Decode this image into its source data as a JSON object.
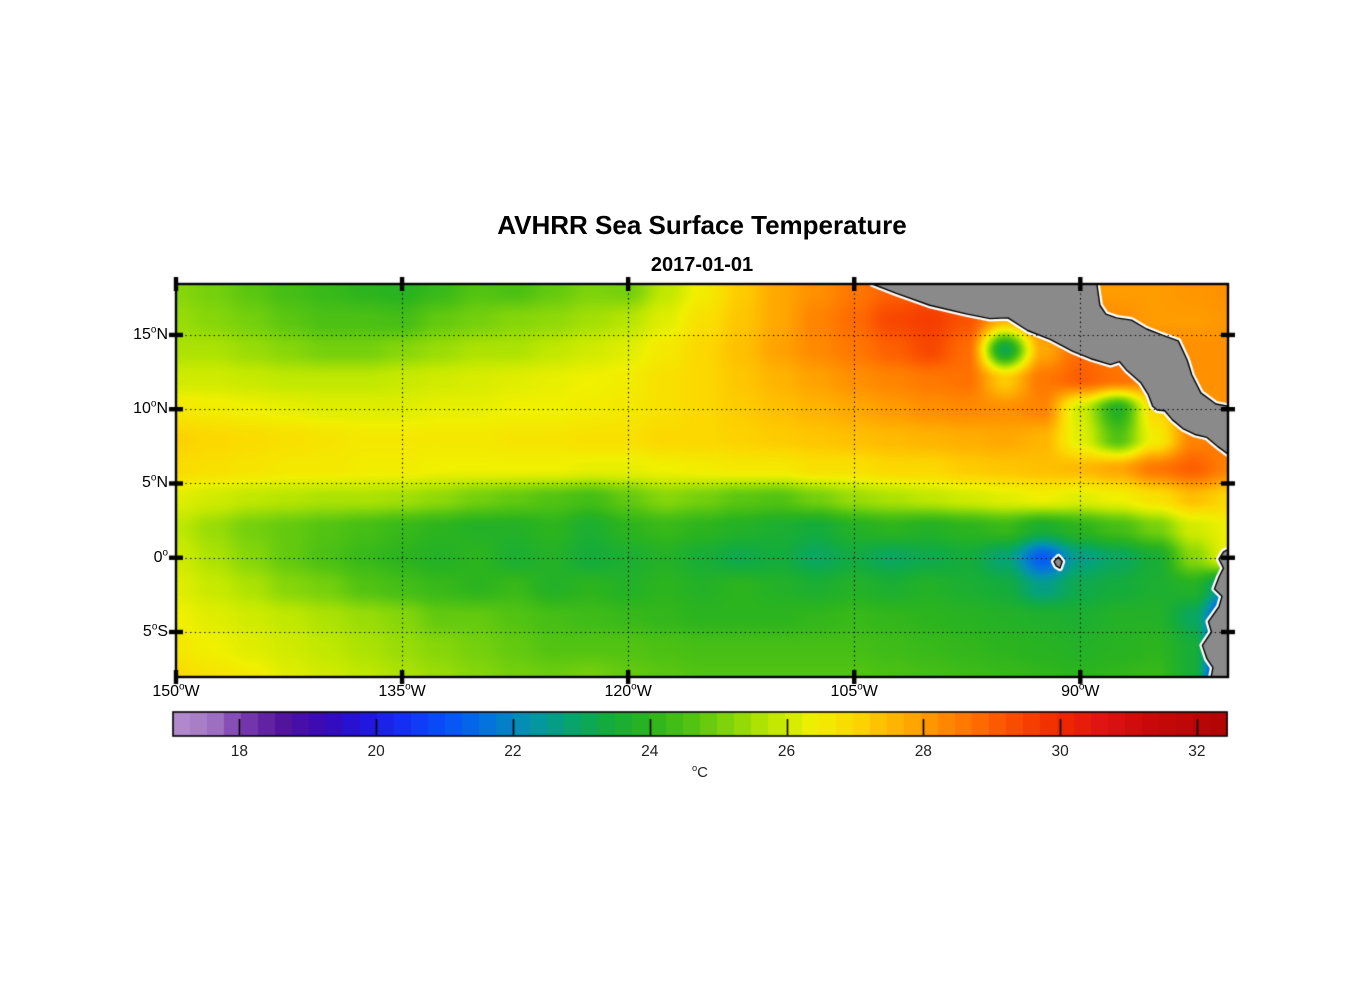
{
  "figure": {
    "title": "AVHRR Sea Surface Temperature",
    "subtitle": "2017-01-01",
    "background": "#ffffff"
  },
  "map": {
    "x_ticks": [
      {
        "lon": -150,
        "label": "150°W"
      },
      {
        "lon": -135,
        "label": "135°W"
      },
      {
        "lon": -120,
        "label": "120°W"
      },
      {
        "lon": -105,
        "label": "105°W"
      },
      {
        "lon": -90,
        "label": "90°W"
      }
    ],
    "y_ticks": [
      {
        "lat": 15,
        "label": "15°N"
      },
      {
        "lat": 10,
        "label": "10°N"
      },
      {
        "lat": 5,
        "label": "5°N"
      },
      {
        "lat": 0,
        "label": "0°"
      },
      {
        "lat": -5,
        "label": "5°S"
      }
    ],
    "extent": {
      "lon_min": -150,
      "lon_max": -80.2,
      "lat_min": -8.03,
      "lat_max": 18.43
    },
    "land_color": "#8a8a8a",
    "coast_color": "#000000",
    "coast_halo_color": "#ffffff",
    "gridline_color": "#000000",
    "frame_color": "#000000"
  },
  "colorbar": {
    "min": 17.03,
    "max": 32.44,
    "steps": 62,
    "ticks": [
      {
        "value": 18,
        "label": "18"
      },
      {
        "value": 20,
        "label": "20"
      },
      {
        "value": 22,
        "label": "22"
      },
      {
        "value": 24,
        "label": "24"
      },
      {
        "value": 26,
        "label": "26"
      },
      {
        "value": 28,
        "label": "28"
      },
      {
        "value": 30,
        "label": "30"
      },
      {
        "value": 32,
        "label": "32"
      }
    ],
    "unit": "°C"
  },
  "chart_data": {
    "type": "heatmap",
    "title": "AVHRR Sea Surface Temperature",
    "date": "2017-01-01",
    "units": "°C",
    "value_range": [
      17,
      32.5
    ],
    "lons": [
      -150,
      -147.5,
      -145,
      -142.5,
      -140,
      -137.5,
      -135,
      -132.5,
      -130,
      -127.5,
      -125,
      -122.5,
      -120,
      -117.5,
      -115,
      -112.5,
      -110,
      -107.5,
      -105,
      -102.5,
      -100,
      -97.5,
      -95,
      -92.5,
      -90,
      -87.5,
      -85,
      -82.5,
      -80
    ],
    "lats": [
      18,
      16,
      14,
      12,
      10,
      8,
      6,
      4,
      2,
      0,
      -2,
      -4,
      -6,
      -8
    ],
    "sst": [
      [
        25.2,
        25.0,
        24.7,
        24.4,
        24.2,
        24.0,
        23.9,
        24.2,
        24.6,
        24.5,
        24.8,
        25.1,
        25.0,
        25.8,
        26.5,
        27.2,
        27.8,
        28.2,
        28.6,
        29.0,
        29.2,
        29.0,
        28.6,
        28.3,
        28.0,
        28.0,
        28.0,
        28.1,
        28.2
      ],
      [
        25.4,
        25.2,
        25.0,
        24.7,
        24.5,
        24.5,
        24.4,
        24.8,
        25.0,
        25.2,
        25.3,
        25.5,
        25.7,
        26.2,
        26.8,
        27.3,
        27.8,
        28.4,
        28.8,
        29.4,
        29.6,
        29.2,
        27.5,
        28.4,
        28.6,
        28.2,
        28.0,
        28.0,
        28.1
      ],
      [
        25.6,
        25.6,
        25.4,
        25.2,
        25.0,
        25.0,
        25.2,
        25.4,
        25.6,
        25.6,
        25.8,
        26.0,
        26.2,
        26.6,
        27.0,
        27.4,
        27.9,
        28.3,
        28.6,
        29.0,
        29.4,
        28.8,
        23.2,
        27.8,
        28.8,
        28.6,
        28.4,
        28.2,
        28.2
      ],
      [
        26.0,
        26.0,
        25.9,
        25.8,
        25.8,
        25.8,
        25.9,
        26.0,
        26.1,
        26.2,
        26.3,
        26.4,
        26.5,
        26.8,
        27.0,
        27.3,
        27.6,
        27.9,
        28.2,
        28.4,
        28.6,
        28.7,
        27.2,
        28.6,
        29.0,
        28.7,
        28.4,
        28.2,
        28.2
      ],
      [
        26.6,
        26.5,
        26.4,
        26.3,
        26.2,
        26.2,
        26.2,
        26.3,
        26.3,
        26.4,
        26.4,
        26.5,
        26.6,
        26.8,
        27.0,
        27.2,
        27.4,
        27.6,
        27.8,
        28.0,
        28.2,
        28.3,
        28.2,
        28.4,
        26.0,
        23.8,
        27.0,
        28.0,
        28.2
      ],
      [
        27.1,
        27.0,
        26.9,
        26.8,
        26.7,
        26.6,
        26.6,
        26.6,
        26.6,
        26.7,
        26.7,
        26.8,
        26.8,
        27.0,
        27.0,
        27.1,
        27.2,
        27.3,
        27.4,
        27.5,
        27.6,
        27.7,
        27.8,
        27.6,
        26.2,
        24.6,
        26.5,
        28.4,
        28.6
      ],
      [
        26.9,
        26.8,
        26.7,
        26.6,
        26.6,
        26.5,
        26.5,
        26.4,
        26.4,
        26.4,
        26.4,
        26.3,
        26.3,
        26.4,
        26.5,
        26.6,
        26.6,
        26.8,
        26.8,
        27.0,
        27.0,
        27.2,
        27.3,
        27.4,
        27.5,
        27.8,
        28.6,
        29.0,
        28.4
      ],
      [
        26.2,
        26.0,
        25.8,
        25.7,
        25.6,
        25.6,
        25.5,
        25.3,
        25.0,
        24.8,
        24.6,
        24.4,
        24.8,
        25.2,
        25.0,
        24.7,
        24.6,
        25.0,
        25.4,
        25.6,
        25.8,
        26.0,
        26.2,
        26.4,
        26.2,
        26.4,
        26.8,
        27.4,
        27.0
      ],
      [
        25.8,
        25.4,
        25.0,
        24.8,
        24.6,
        24.4,
        24.2,
        24.0,
        23.8,
        23.8,
        24.0,
        23.6,
        24.0,
        24.2,
        24.0,
        23.8,
        23.6,
        23.4,
        23.8,
        24.0,
        23.8,
        24.0,
        24.2,
        23.6,
        24.0,
        24.4,
        25.0,
        26.0,
        26.4
      ],
      [
        26.0,
        25.6,
        25.2,
        24.8,
        24.5,
        24.2,
        24.0,
        23.8,
        24.0,
        23.6,
        23.8,
        23.4,
        23.6,
        23.8,
        23.5,
        23.2,
        23.4,
        23.0,
        23.3,
        23.0,
        23.2,
        23.4,
        22.8,
        21.2,
        22.6,
        23.0,
        23.5,
        25.2,
        26.4
      ],
      [
        26.2,
        25.9,
        25.6,
        25.2,
        25.0,
        24.6,
        24.4,
        24.2,
        24.0,
        24.2,
        23.8,
        24.0,
        23.8,
        24.0,
        23.8,
        24.0,
        23.8,
        23.6,
        23.8,
        23.6,
        23.8,
        23.6,
        23.4,
        22.6,
        23.2,
        23.4,
        23.6,
        23.8,
        22.0
      ],
      [
        26.4,
        26.2,
        26.0,
        25.8,
        25.6,
        25.4,
        25.2,
        24.8,
        24.8,
        24.6,
        24.4,
        24.3,
        24.2,
        24.1,
        24.0,
        24.0,
        24.0,
        24.1,
        24.2,
        24.1,
        24.0,
        23.9,
        23.8,
        23.7,
        23.6,
        23.8,
        23.8,
        23.0,
        20.0
      ],
      [
        26.6,
        26.4,
        26.2,
        26.0,
        25.8,
        25.6,
        25.4,
        25.2,
        25.0,
        24.8,
        24.6,
        24.6,
        24.6,
        24.5,
        24.4,
        24.4,
        24.4,
        24.4,
        24.4,
        24.3,
        24.2,
        24.1,
        24.0,
        23.9,
        23.8,
        23.9,
        24.0,
        23.5,
        19.0
      ],
      [
        26.9,
        26.7,
        26.5,
        26.2,
        26.0,
        25.8,
        25.6,
        25.4,
        25.2,
        25.0,
        24.9,
        25.0,
        24.8,
        24.7,
        24.6,
        24.6,
        24.6,
        24.6,
        24.6,
        24.5,
        24.4,
        24.3,
        24.2,
        24.1,
        24.0,
        24.1,
        24.2,
        23.5,
        17.8
      ]
    ],
    "colormap_stops": [
      [
        17.0,
        "#b78fd0"
      ],
      [
        17.6,
        "#a276c4"
      ],
      [
        18.0,
        "#7d41b2"
      ],
      [
        18.6,
        "#55149c"
      ],
      [
        19.2,
        "#3a0bb4"
      ],
      [
        19.8,
        "#2414dc"
      ],
      [
        20.4,
        "#1430f4"
      ],
      [
        21.0,
        "#0850fa"
      ],
      [
        21.6,
        "#0472e0"
      ],
      [
        22.2,
        "#0492b0"
      ],
      [
        22.8,
        "#06a472"
      ],
      [
        23.4,
        "#14ac3c"
      ],
      [
        24.0,
        "#2cb41e"
      ],
      [
        24.6,
        "#52c312"
      ],
      [
        25.2,
        "#86d60a"
      ],
      [
        25.8,
        "#c0e800"
      ],
      [
        26.4,
        "#f0f000"
      ],
      [
        27.0,
        "#fcd800"
      ],
      [
        27.6,
        "#ffb400"
      ],
      [
        28.2,
        "#ff9000"
      ],
      [
        28.8,
        "#ff6c00"
      ],
      [
        29.4,
        "#f84800"
      ],
      [
        30.0,
        "#f02800"
      ],
      [
        30.6,
        "#e01414"
      ],
      [
        31.2,
        "#cc0a0a"
      ],
      [
        32.45,
        "#b00505"
      ]
    ],
    "land_polygons": {
      "central_america": [
        [
          -103.8,
          18.43
        ],
        [
          -102.2,
          17.8
        ],
        [
          -100.0,
          17.0
        ],
        [
          -97.5,
          16.4
        ],
        [
          -96.0,
          16.1
        ],
        [
          -94.8,
          16.15
        ],
        [
          -93.5,
          15.3
        ],
        [
          -92.0,
          14.7
        ],
        [
          -90.5,
          13.9
        ],
        [
          -89.3,
          13.4
        ],
        [
          -88.0,
          13.0
        ],
        [
          -87.4,
          13.2
        ],
        [
          -86.9,
          12.6
        ],
        [
          -86.0,
          11.8
        ],
        [
          -85.5,
          11.0
        ],
        [
          -85.2,
          10.2
        ],
        [
          -84.9,
          9.95
        ],
        [
          -84.4,
          9.9
        ],
        [
          -83.9,
          9.3
        ],
        [
          -83.2,
          8.7
        ],
        [
          -82.4,
          8.3
        ],
        [
          -81.6,
          8.1
        ],
        [
          -80.9,
          7.5
        ],
        [
          -80.1,
          6.9
        ],
        [
          -79.7,
          6.8
        ],
        [
          -79.7,
          10.1
        ],
        [
          -81.0,
          10.35
        ],
        [
          -82.0,
          11.1
        ],
        [
          -82.6,
          12.3
        ],
        [
          -82.9,
          13.3
        ],
        [
          -83.5,
          14.6
        ],
        [
          -84.6,
          15.0
        ],
        [
          -85.6,
          15.4
        ],
        [
          -86.6,
          16.0
        ],
        [
          -87.6,
          16.15
        ],
        [
          -88.3,
          16.4
        ],
        [
          -88.7,
          17.0
        ],
        [
          -88.9,
          18.43
        ]
      ],
      "south_america": [
        [
          -79.7,
          0.8
        ],
        [
          -80.5,
          0.4
        ],
        [
          -80.8,
          -0.1
        ],
        [
          -80.5,
          -0.7
        ],
        [
          -80.8,
          -1.3
        ],
        [
          -81.1,
          -2.1
        ],
        [
          -80.6,
          -2.6
        ],
        [
          -80.8,
          -3.3
        ],
        [
          -81.5,
          -4.3
        ],
        [
          -81.3,
          -5.0
        ],
        [
          -81.9,
          -5.9
        ],
        [
          -81.6,
          -6.8
        ],
        [
          -81.2,
          -7.4
        ],
        [
          -81.4,
          -8.43
        ],
        [
          -79.7,
          -8.43
        ]
      ],
      "galapagos": [
        [
          -91.75,
          -0.25
        ],
        [
          -91.45,
          0.05
        ],
        [
          -91.2,
          -0.25
        ],
        [
          -91.35,
          -0.7
        ],
        [
          -91.6,
          -0.55
        ]
      ]
    }
  }
}
